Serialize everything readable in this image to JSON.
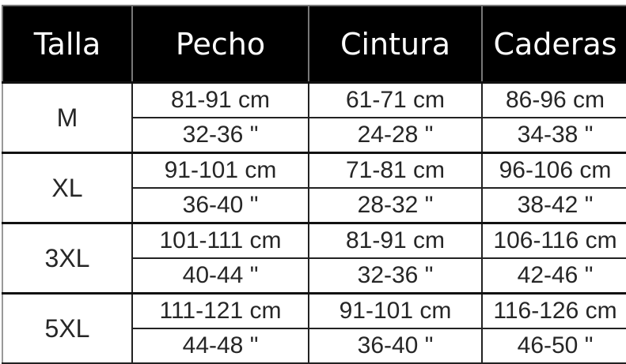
{
  "headers": [
    "Talla",
    "Pecho",
    "Cintura",
    "Caderas"
  ],
  "rows": [
    {
      "size": "M",
      "cm": [
        "81-91 cm",
        "61-71 cm",
        "86-96 cm"
      ],
      "in": [
        "32-36 \"",
        "24-28 \"",
        "34-38 \""
      ]
    },
    {
      "size": "XL",
      "cm": [
        "91-101 cm",
        "71-81 cm",
        "96-106 cm"
      ],
      "in": [
        "36-40 \"",
        "28-32 \"",
        "38-42 \""
      ]
    },
    {
      "size": "3XL",
      "cm": [
        "101-111 cm",
        "81-91 cm",
        "106-116 cm"
      ],
      "in": [
        "40-44 \"",
        "32-36 \"",
        "42-46 \""
      ]
    },
    {
      "size": "5XL",
      "cm": [
        "111-121 cm",
        "91-101 cm",
        "116-126 cm"
      ],
      "in": [
        "44-48 \"",
        "36-40 \"",
        "46-50 \""
      ]
    }
  ]
}
